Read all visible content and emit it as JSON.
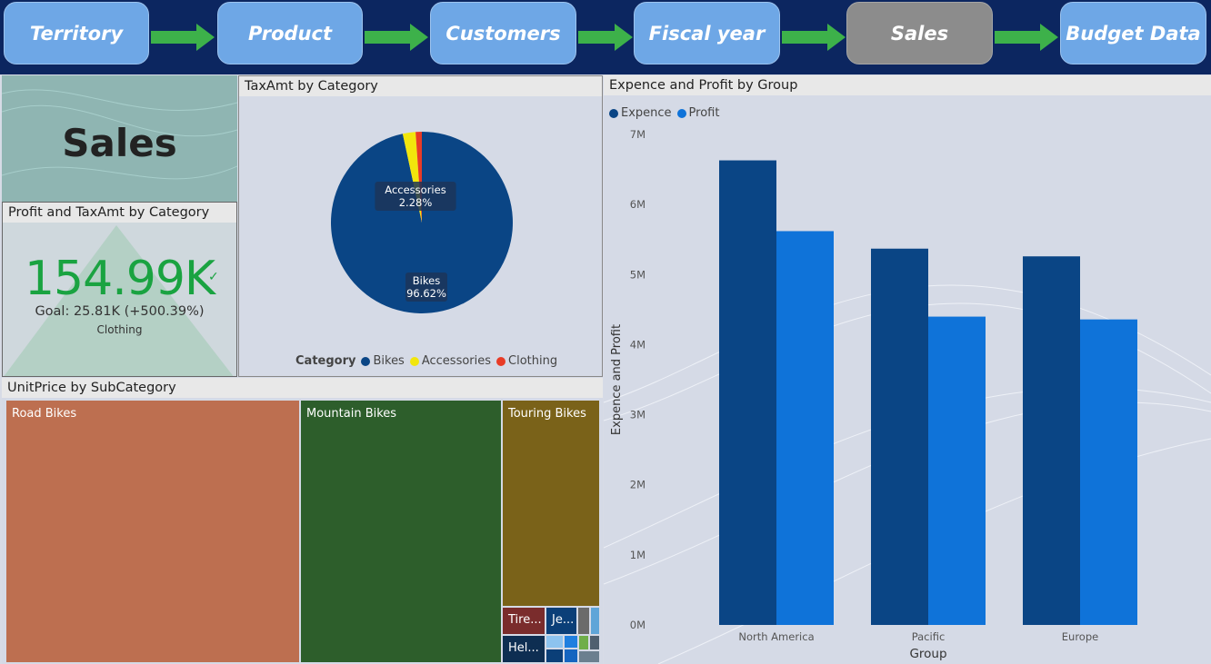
{
  "nav": {
    "buttons": [
      {
        "label": "Territory"
      },
      {
        "label": "Product"
      },
      {
        "label": "Customers"
      },
      {
        "label": "Fiscal year"
      },
      {
        "label": "Sales"
      },
      {
        "label": "Budget Data"
      }
    ],
    "active": "Sales",
    "colors": {
      "button": "#6ea7e6",
      "active": "#8c8c8c",
      "arrow": "#3db14a",
      "background": "#0c2660"
    }
  },
  "sales_card": {
    "title": "Sales"
  },
  "kpi": {
    "title": "Profit and TaxAmt by Category",
    "value": "154.99K",
    "goal": "Goal: 25.81K (+500.39%)",
    "category": "Clothing",
    "check": "✓"
  },
  "pie": {
    "title": "TaxAmt by Category",
    "legend_title": "Category",
    "legend": [
      {
        "name": "Bikes",
        "color": "#0a4585"
      },
      {
        "name": "Accessories",
        "color": "#f2e60c"
      },
      {
        "name": "Clothing",
        "color": "#e83b26"
      }
    ],
    "labels": [
      {
        "name": "Accessories",
        "pct": "2.28%"
      },
      {
        "name": "Bikes",
        "pct": "96.62%"
      }
    ]
  },
  "treemap": {
    "title": "UnitPrice by SubCategory",
    "tiles": [
      {
        "label": "Road Bikes",
        "color": "#bd6f50"
      },
      {
        "label": "Mountain Bikes",
        "color": "#2d5e2b"
      },
      {
        "label": "Touring Bikes",
        "color": "#7a6219"
      },
      {
        "label": "Tire...",
        "color": "#7a2c2c"
      },
      {
        "label": "Je...",
        "color": "#0b3f78"
      },
      {
        "label": "Hel...",
        "color": "#0e2e52"
      }
    ]
  },
  "chart_data": [
    {
      "type": "pie",
      "title": "TaxAmt by Category",
      "categories": [
        "Bikes",
        "Accessories",
        "Clothing"
      ],
      "values": [
        96.62,
        2.28,
        1.1
      ],
      "colors": [
        "#0a4585",
        "#f2e60c",
        "#e83b26"
      ],
      "legend_position": "bottom"
    },
    {
      "type": "bar",
      "title": "Expence and Profit by Group",
      "categories": [
        "North America",
        "Pacific",
        "Europe"
      ],
      "series": [
        {
          "name": "Expence",
          "values": [
            6.63,
            5.37,
            5.26
          ],
          "color": "#0a4585"
        },
        {
          "name": "Profit",
          "values": [
            5.62,
            4.4,
            4.36
          ],
          "color": "#0f73d9"
        }
      ],
      "xlabel": "Group",
      "ylabel": "Expence and Profit",
      "ylim": [
        0,
        7
      ],
      "yticks": [
        "0M",
        "1M",
        "2M",
        "3M",
        "4M",
        "5M",
        "6M",
        "7M"
      ],
      "legend_position": "top-left"
    }
  ]
}
